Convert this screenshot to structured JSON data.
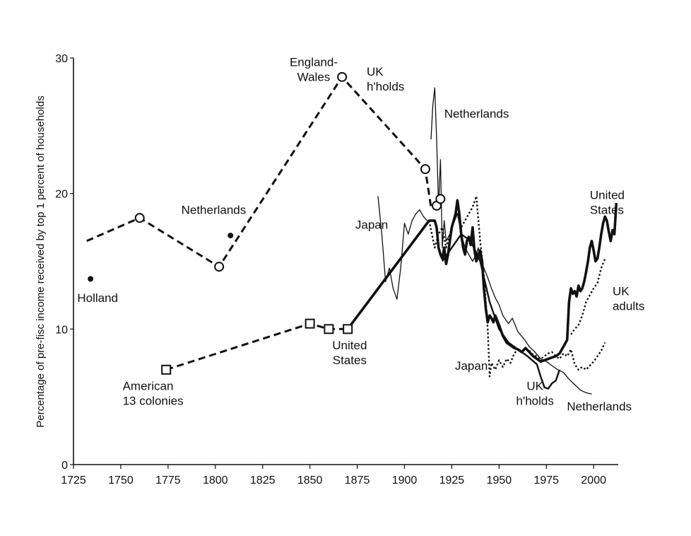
{
  "chart_data": {
    "type": "line",
    "title": "",
    "xlabel": "",
    "ylabel": "Percentage of pre-fisc income received by top 1 percent of households",
    "xlim": [
      1725,
      2013
    ],
    "ylim": [
      0,
      30
    ],
    "x_ticks": [
      1725,
      1750,
      1775,
      1800,
      1825,
      1850,
      1875,
      1900,
      1925,
      1950,
      1975,
      2000
    ],
    "y_ticks": [
      0,
      10,
      20,
      30
    ],
    "grid": false,
    "legend": "none",
    "series": [
      {
        "style": "dashed",
        "values": [
          [
            1732,
            16.5
          ],
          [
            1760,
            18.2
          ],
          [
            1802,
            14.6
          ],
          [
            1867,
            28.6
          ],
          [
            1911,
            21.8
          ],
          [
            1914,
            19.0
          ]
        ]
      },
      {
        "style": "dashed",
        "values": [
          [
            1774,
            7.0
          ],
          [
            1850,
            10.4
          ],
          [
            1860,
            10.0
          ],
          [
            1870,
            10.0
          ]
        ]
      },
      {
        "style": "solid-heavy",
        "values": [
          [
            1870,
            10.0
          ],
          [
            1913,
            18.0
          ],
          [
            1916,
            18.0
          ],
          [
            1917,
            17.5
          ],
          [
            1918,
            16.0
          ],
          [
            1919,
            15.5
          ],
          [
            1920,
            15.2
          ],
          [
            1921,
            16.0
          ],
          [
            1922,
            14.8
          ],
          [
            1923,
            15.5
          ],
          [
            1924,
            16.5
          ],
          [
            1925,
            17.5
          ],
          [
            1926,
            18.0
          ],
          [
            1927,
            18.5
          ],
          [
            1928,
            19.5
          ],
          [
            1929,
            18.5
          ],
          [
            1930,
            17.0
          ],
          [
            1931,
            16.0
          ],
          [
            1932,
            15.5
          ],
          [
            1933,
            16.5
          ],
          [
            1934,
            16.8
          ],
          [
            1935,
            16.2
          ],
          [
            1936,
            17.5
          ],
          [
            1937,
            15.8
          ],
          [
            1938,
            15.0
          ],
          [
            1939,
            15.5
          ],
          [
            1940,
            15.8
          ],
          [
            1941,
            15.0
          ],
          [
            1942,
            13.0
          ],
          [
            1943,
            11.5
          ],
          [
            1944,
            10.5
          ],
          [
            1945,
            11.0
          ],
          [
            1946,
            10.8
          ],
          [
            1947,
            10.5
          ],
          [
            1948,
            11.0
          ],
          [
            1950,
            10.3
          ],
          [
            1952,
            9.5
          ],
          [
            1954,
            9.0
          ],
          [
            1956,
            8.8
          ],
          [
            1958,
            8.6
          ],
          [
            1960,
            8.5
          ],
          [
            1962,
            8.3
          ],
          [
            1964,
            8.6
          ],
          [
            1966,
            8.3
          ],
          [
            1968,
            8.0
          ],
          [
            1970,
            7.8
          ],
          [
            1972,
            7.6
          ],
          [
            1974,
            7.7
          ],
          [
            1976,
            7.8
          ],
          [
            1978,
            7.9
          ],
          [
            1980,
            8.0
          ],
          [
            1982,
            8.2
          ],
          [
            1984,
            8.7
          ],
          [
            1986,
            9.2
          ],
          [
            1987,
            12.0
          ],
          [
            1988,
            13.0
          ],
          [
            1989,
            12.6
          ],
          [
            1990,
            12.8
          ],
          [
            1991,
            12.4
          ],
          [
            1992,
            13.2
          ],
          [
            1993,
            12.8
          ],
          [
            1994,
            13.0
          ],
          [
            1995,
            13.5
          ],
          [
            1996,
            14.2
          ],
          [
            1997,
            15.0
          ],
          [
            1998,
            16.0
          ],
          [
            1999,
            16.5
          ],
          [
            2000,
            15.8
          ],
          [
            2001,
            15.0
          ],
          [
            2002,
            15.2
          ],
          [
            2003,
            16.0
          ],
          [
            2004,
            17.0
          ],
          [
            2005,
            17.8
          ],
          [
            2006,
            18.3
          ],
          [
            2007,
            18.0
          ],
          [
            2008,
            17.2
          ],
          [
            2009,
            16.5
          ],
          [
            2010,
            17.3
          ],
          [
            2011,
            17.0
          ],
          [
            2012,
            19.3
          ]
        ]
      },
      {
        "style": "solid-thin",
        "values": [
          [
            1914,
            24.0
          ],
          [
            1915,
            26.5
          ],
          [
            1916,
            27.8
          ],
          [
            1917,
            24.0
          ],
          [
            1918,
            19.0
          ],
          [
            1919,
            22.5
          ],
          [
            1920,
            16.0
          ],
          [
            1921,
            18.0
          ],
          [
            1922,
            16.5
          ],
          [
            1924,
            17.0
          ],
          [
            1926,
            17.8
          ],
          [
            1928,
            18.5
          ],
          [
            1930,
            17.0
          ],
          [
            1932,
            16.0
          ],
          [
            1934,
            15.5
          ],
          [
            1936,
            15.0
          ],
          [
            1938,
            15.5
          ],
          [
            1939,
            16.0
          ],
          [
            1940,
            15.0
          ],
          [
            1942,
            14.5
          ],
          [
            1944,
            13.8
          ],
          [
            1946,
            13.0
          ],
          [
            1948,
            12.3
          ],
          [
            1950,
            11.8
          ],
          [
            1952,
            11.0
          ],
          [
            1955,
            10.4
          ],
          [
            1957,
            10.8
          ],
          [
            1960,
            9.8
          ],
          [
            1963,
            9.3
          ],
          [
            1966,
            8.7
          ],
          [
            1969,
            8.3
          ],
          [
            1972,
            7.8
          ],
          [
            1975,
            7.6
          ],
          [
            1978,
            7.3
          ],
          [
            1981,
            7.0
          ],
          [
            1984,
            6.8
          ],
          [
            1987,
            6.3
          ],
          [
            1990,
            5.9
          ],
          [
            1993,
            5.5
          ],
          [
            1996,
            5.3
          ],
          [
            1999,
            5.2
          ]
        ]
      },
      {
        "style": "solid-medium",
        "values": [
          [
            1920,
            15.0
          ],
          [
            1925,
            16.0
          ],
          [
            1930,
            17.0
          ],
          [
            1935,
            16.5
          ],
          [
            1940,
            15.0
          ],
          [
            1945,
            12.0
          ],
          [
            1950,
            10.0
          ],
          [
            1955,
            9.0
          ],
          [
            1960,
            8.5
          ],
          [
            1965,
            8.0
          ],
          [
            1970,
            7.4
          ],
          [
            1972,
            6.5
          ],
          [
            1974,
            5.7
          ],
          [
            1976,
            5.6
          ],
          [
            1978,
            6.0
          ],
          [
            1980,
            6.2
          ],
          [
            1982,
            7.0
          ]
        ]
      },
      {
        "style": "dotted",
        "values": [
          [
            1913,
            18.0
          ],
          [
            1916,
            16.0
          ],
          [
            1918,
            17.0
          ],
          [
            1920,
            17.5
          ],
          [
            1922,
            16.0
          ],
          [
            1924,
            17.0
          ],
          [
            1926,
            18.0
          ],
          [
            1928,
            18.5
          ],
          [
            1930,
            17.5
          ],
          [
            1932,
            18.0
          ],
          [
            1934,
            18.5
          ],
          [
            1936,
            19.0
          ],
          [
            1938,
            19.8
          ],
          [
            1940,
            16.5
          ],
          [
            1942,
            14.0
          ],
          [
            1944,
            10.0
          ],
          [
            1945,
            6.5
          ],
          [
            1946,
            7.5
          ],
          [
            1948,
            7.0
          ],
          [
            1950,
            7.7
          ],
          [
            1952,
            7.2
          ],
          [
            1954,
            7.8
          ],
          [
            1956,
            7.5
          ],
          [
            1958,
            8.2
          ],
          [
            1960,
            8.5
          ],
          [
            1962,
            8.3
          ],
          [
            1964,
            8.6
          ],
          [
            1966,
            8.4
          ],
          [
            1968,
            8.1
          ],
          [
            1970,
            8.0
          ],
          [
            1972,
            7.8
          ],
          [
            1974,
            8.0
          ],
          [
            1976,
            8.2
          ],
          [
            1978,
            8.3
          ],
          [
            1980,
            8.0
          ],
          [
            1982,
            7.8
          ],
          [
            1984,
            8.2
          ],
          [
            1986,
            8.0
          ],
          [
            1988,
            8.5
          ],
          [
            1990,
            7.4
          ],
          [
            1992,
            7.0
          ],
          [
            1994,
            7.2
          ],
          [
            1996,
            7.0
          ],
          [
            1998,
            7.3
          ],
          [
            2000,
            7.6
          ],
          [
            2002,
            8.0
          ],
          [
            2004,
            8.4
          ],
          [
            2006,
            9.0
          ]
        ]
      },
      {
        "style": "dotted",
        "values": [
          [
            1988,
            9.6
          ],
          [
            1990,
            10.0
          ],
          [
            1992,
            10.3
          ],
          [
            1994,
            11.0
          ],
          [
            1996,
            12.0
          ],
          [
            1998,
            12.5
          ],
          [
            2000,
            13.0
          ],
          [
            2002,
            13.4
          ],
          [
            2004,
            14.5
          ],
          [
            2006,
            15.2
          ]
        ]
      },
      {
        "style": "solid-thin",
        "values": [
          [
            1886,
            19.8
          ],
          [
            1888,
            17.0
          ],
          [
            1890,
            13.5
          ],
          [
            1892,
            14.5
          ],
          [
            1894,
            13.0
          ],
          [
            1896,
            12.2
          ],
          [
            1898,
            14.5
          ],
          [
            1900,
            17.8
          ],
          [
            1902,
            17.0
          ],
          [
            1904,
            18.0
          ],
          [
            1906,
            18.5
          ],
          [
            1908,
            18.8
          ],
          [
            1910,
            18.3
          ],
          [
            1912,
            18.0
          ]
        ]
      }
    ],
    "markers": [
      {
        "shape": "circle-open",
        "x": 1760,
        "y": 18.2
      },
      {
        "shape": "circle-open",
        "x": 1802,
        "y": 14.6
      },
      {
        "shape": "circle-open",
        "x": 1867,
        "y": 28.6
      },
      {
        "shape": "circle-open",
        "x": 1911,
        "y": 21.8
      },
      {
        "shape": "circle-open",
        "x": 1917,
        "y": 19.1
      },
      {
        "shape": "circle-open",
        "x": 1919,
        "y": 19.6
      },
      {
        "shape": "dot",
        "x": 1734,
        "y": 13.7
      },
      {
        "shape": "dot",
        "x": 1808,
        "y": 16.9
      },
      {
        "shape": "square-open",
        "x": 1774,
        "y": 7.0
      },
      {
        "shape": "square-open",
        "x": 1850,
        "y": 10.4
      },
      {
        "shape": "square-open",
        "x": 1860,
        "y": 10.0
      },
      {
        "shape": "square-open",
        "x": 1870,
        "y": 10.0
      }
    ],
    "annotations": [
      {
        "lines": [
          "England-",
          "Wales"
        ],
        "x": 1852,
        "y": 29.4,
        "anchor": "middle"
      },
      {
        "lines": [
          "UK",
          "h'holds"
        ],
        "x": 1880,
        "y": 28.7,
        "anchor": "start"
      },
      {
        "lines": [
          "Netherlands"
        ],
        "x": 1921,
        "y": 25.6,
        "anchor": "start"
      },
      {
        "lines": [
          "Netherlands"
        ],
        "x": 1782,
        "y": 18.5,
        "anchor": "start"
      },
      {
        "lines": [
          "Japan"
        ],
        "x": 1874,
        "y": 17.4,
        "anchor": "start"
      },
      {
        "lines": [
          "Holland"
        ],
        "x": 1727,
        "y": 12.0,
        "anchor": "start"
      },
      {
        "lines": [
          "United",
          "States"
        ],
        "x": 1871,
        "y": 8.5,
        "anchor": "middle"
      },
      {
        "lines": [
          "American",
          "13 colonies"
        ],
        "x": 1751,
        "y": 5.5,
        "anchor": "start"
      },
      {
        "lines": [
          "Japan"
        ],
        "x": 1944,
        "y": 7.0,
        "anchor": "end"
      },
      {
        "lines": [
          "UK",
          "h'holds"
        ],
        "x": 1969,
        "y": 5.5,
        "anchor": "middle"
      },
      {
        "lines": [
          "Netherlands"
        ],
        "x": 2003,
        "y": 4.0,
        "anchor": "middle"
      },
      {
        "lines": [
          "United",
          "States"
        ],
        "x": 1998,
        "y": 19.6,
        "anchor": "start"
      },
      {
        "lines": [
          "UK",
          "adults"
        ],
        "x": 2010,
        "y": 12.5,
        "anchor": "start"
      }
    ]
  }
}
